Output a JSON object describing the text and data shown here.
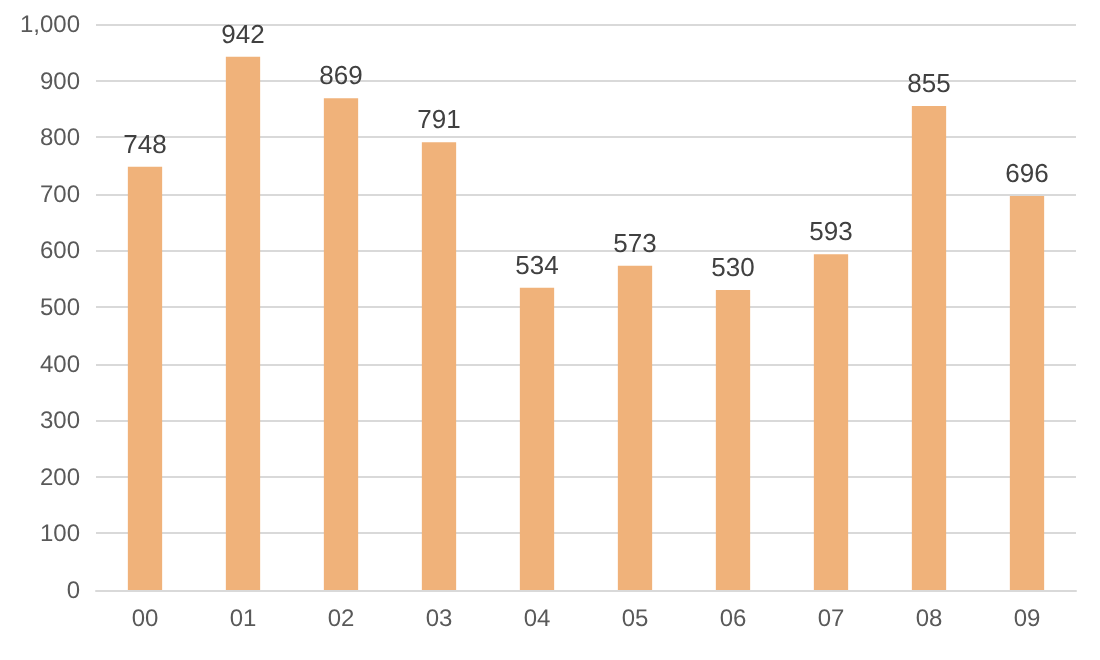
{
  "chart_data": {
    "type": "bar",
    "categories": [
      "00",
      "01",
      "02",
      "03",
      "04",
      "05",
      "06",
      "07",
      "08",
      "09"
    ],
    "values": [
      748,
      942,
      869,
      791,
      534,
      573,
      530,
      593,
      855,
      696
    ],
    "color": "#f0b27a",
    "ylim": [
      0,
      1000
    ],
    "yticks": [
      0,
      100,
      200,
      300,
      400,
      500,
      600,
      700,
      800,
      900,
      {
        "value": 1000,
        "label": "1,000"
      }
    ],
    "grid": "y",
    "data_labels": true
  }
}
